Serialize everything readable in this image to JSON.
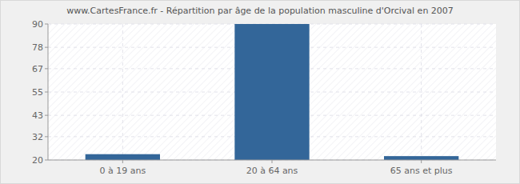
{
  "chart_data": {
    "type": "bar",
    "title": "www.CartesFrance.fr - Répartition par âge de la population masculine d'Orcival en 2007",
    "categories": [
      "0 à 19 ans",
      "20 à 64 ans",
      "65 ans et plus"
    ],
    "values": [
      23,
      90,
      22
    ],
    "color": "#336699",
    "ylim": [
      20,
      90
    ],
    "yticks": [
      20,
      32,
      43,
      55,
      67,
      78,
      90
    ],
    "grid": true
  }
}
